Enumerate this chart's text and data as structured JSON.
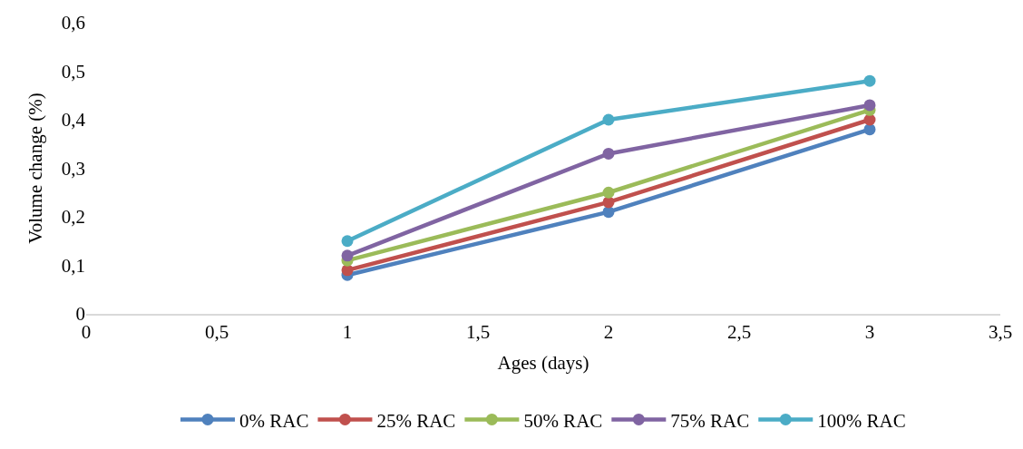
{
  "chart_data": {
    "type": "line",
    "xlabel": "Ages (days)",
    "ylabel": "Volume change (%)",
    "x": [
      1,
      2,
      3
    ],
    "series": [
      {
        "name": "0% RAC",
        "color": "#4f81bd",
        "values": [
          0.08,
          0.21,
          0.38
        ]
      },
      {
        "name": "25% RAC",
        "color": "#c0504d",
        "values": [
          0.09,
          0.23,
          0.4
        ]
      },
      {
        "name": "50% RAC",
        "color": "#9bbb59",
        "values": [
          0.11,
          0.25,
          0.42
        ]
      },
      {
        "name": "75% RAC",
        "color": "#8064a2",
        "values": [
          0.12,
          0.33,
          0.43
        ]
      },
      {
        "name": "100% RAC",
        "color": "#4bacc6",
        "values": [
          0.15,
          0.4,
          0.48
        ]
      }
    ],
    "xlim": [
      0,
      3.5
    ],
    "ylim": [
      0,
      0.6
    ],
    "xticks": [
      0,
      {
        "value": 0.5,
        "label": "0,5"
      },
      1,
      {
        "value": 1.5,
        "label": "1,5"
      },
      2,
      {
        "value": 2.5,
        "label": "2,5"
      },
      3,
      {
        "value": 3.5,
        "label": "3,5"
      }
    ],
    "yticks": [
      0,
      {
        "value": 0.1,
        "label": "0,1"
      },
      {
        "value": 0.2,
        "label": "0,2"
      },
      {
        "value": 0.3,
        "label": "0,3"
      },
      {
        "value": 0.4,
        "label": "0,4"
      },
      {
        "value": 0.5,
        "label": "0,5"
      },
      {
        "value": 0.6,
        "label": "0,6"
      }
    ],
    "grid": false,
    "legend": "bottom",
    "marker": "circle",
    "line_style": "solid"
  }
}
